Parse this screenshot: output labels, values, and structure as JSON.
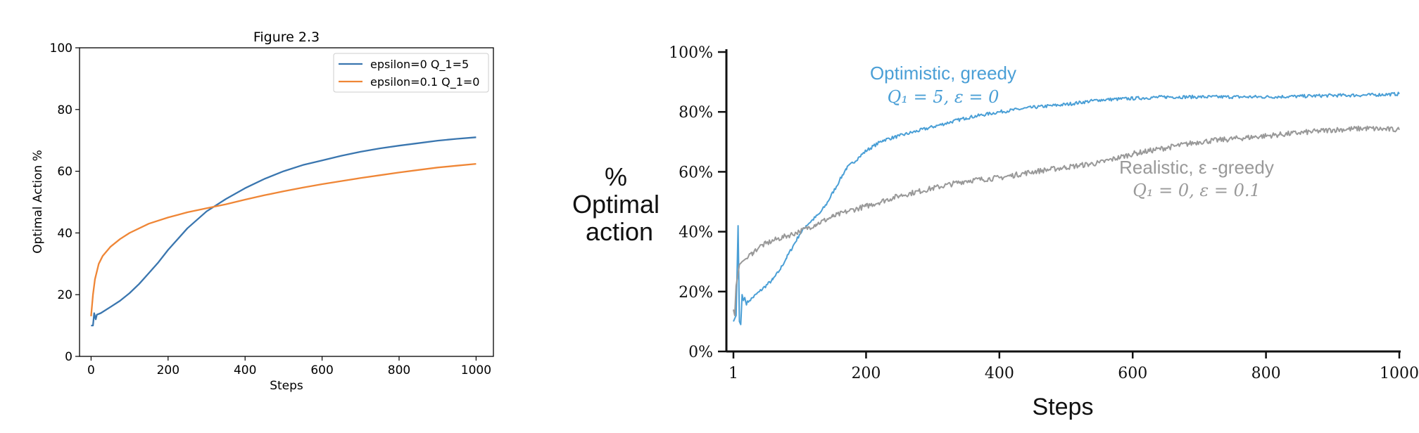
{
  "chart_data": [
    {
      "type": "line",
      "title": "Figure 2.3",
      "xlabel": "Steps",
      "ylabel": "Optimal Action %",
      "xlim": [
        -30,
        1045
      ],
      "ylim": [
        0,
        100
      ],
      "x_ticks": [
        "0",
        "200",
        "400",
        "600",
        "800",
        "1000"
      ],
      "y_ticks": [
        "0",
        "20",
        "40",
        "60",
        "80",
        "100"
      ],
      "grid": false,
      "legend": "top-right",
      "series": [
        {
          "name": "epsilon=0 Q_1=5",
          "color": "#3a76af",
          "x": [
            0,
            5,
            8,
            12,
            15,
            25,
            50,
            75,
            100,
            125,
            150,
            175,
            200,
            250,
            300,
            350,
            400,
            450,
            500,
            550,
            600,
            650,
            700,
            750,
            800,
            850,
            900,
            950,
            1000
          ],
          "y": [
            10,
            10,
            14,
            12,
            13.5,
            14,
            16,
            18,
            20.5,
            23.5,
            27,
            30.5,
            34.5,
            41.5,
            47,
            51,
            54.5,
            57.5,
            60,
            62,
            63.5,
            65,
            66.3,
            67.4,
            68.3,
            69.1,
            69.9,
            70.5,
            71
          ]
        },
        {
          "name": "epsilon=0.1 Q_1=0",
          "color": "#ef8636",
          "x": [
            0,
            5,
            10,
            20,
            30,
            50,
            75,
            100,
            150,
            200,
            250,
            300,
            350,
            400,
            450,
            500,
            550,
            600,
            650,
            700,
            750,
            800,
            850,
            900,
            950,
            1000
          ],
          "y": [
            13,
            20,
            25,
            30,
            32.5,
            35.5,
            38,
            40,
            43,
            45,
            46.7,
            48,
            49.3,
            50.8,
            52.2,
            53.5,
            54.7,
            55.8,
            56.8,
            57.8,
            58.7,
            59.6,
            60.4,
            61.2,
            61.8,
            62.4
          ]
        }
      ]
    },
    {
      "type": "line",
      "title": "",
      "xlabel": "Steps",
      "ylabel": "%\nOptimal\naction",
      "xlim": [
        1,
        1000
      ],
      "ylim": [
        0,
        100
      ],
      "x_ticks": [
        "1",
        "200",
        "400",
        "600",
        "800",
        "1000"
      ],
      "y_ticks": [
        "0%",
        "20%",
        "40%",
        "60%",
        "80%",
        "100%"
      ],
      "grid": false,
      "series": [
        {
          "color": "#4a9fd6",
          "x": [
            1,
            5,
            8,
            10,
            12,
            14,
            16,
            18,
            20,
            25,
            30,
            40,
            50,
            60,
            70,
            80,
            90,
            100,
            110,
            120,
            130,
            140,
            150,
            160,
            170,
            180,
            190,
            200,
            225,
            250,
            275,
            300,
            350,
            400,
            450,
            500,
            550,
            600,
            650,
            700,
            750,
            800,
            850,
            900,
            950,
            1000
          ],
          "y": [
            10,
            12,
            42,
            10,
            9,
            19,
            17,
            18,
            16,
            17,
            18,
            20,
            22,
            24,
            27,
            31,
            35,
            39,
            42,
            44,
            46,
            49,
            53,
            57,
            61,
            63,
            65,
            67,
            70.5,
            72,
            73.5,
            75,
            78,
            80,
            81.5,
            82.5,
            84,
            84.5,
            85,
            85,
            85,
            85,
            85.2,
            85.5,
            85.6,
            86
          ]
        },
        {
          "color": "#999999",
          "x": [
            1,
            3,
            5,
            8,
            10,
            14,
            20,
            30,
            40,
            50,
            60,
            80,
            100,
            125,
            150,
            175,
            200,
            250,
            300,
            350,
            400,
            450,
            500,
            550,
            600,
            650,
            700,
            750,
            800,
            850,
            900,
            950,
            1000
          ],
          "y": [
            14,
            12,
            22,
            26,
            29,
            30,
            31,
            33,
            35,
            36,
            37,
            38.5,
            40,
            42.5,
            45,
            47,
            48.5,
            52,
            54.5,
            57,
            58,
            60,
            61.5,
            63,
            66,
            68,
            70,
            71,
            72,
            73,
            74,
            74.5,
            74
          ]
        }
      ],
      "annotations": [
        {
          "line1": "Optimistic, greedy",
          "line2": "Q₁ = 5,  ε = 0",
          "color": "#4a9fd6"
        },
        {
          "line1": "Realistic, ε -greedy",
          "line2": "Q₁ = 0,  ε = 0.1",
          "color": "#999999"
        }
      ]
    }
  ]
}
